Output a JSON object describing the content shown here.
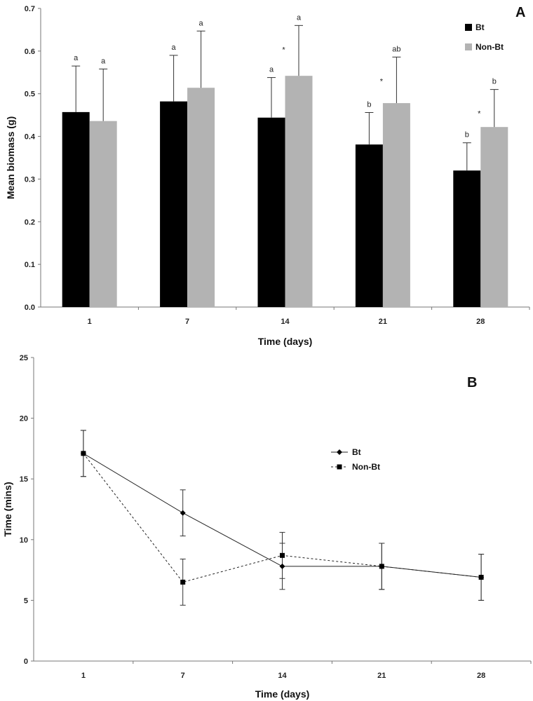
{
  "chart_data": [
    {
      "type": "bar",
      "panel_label": "A",
      "categories": [
        "1",
        "7",
        "14",
        "21",
        "28"
      ],
      "xlabel": "Time (days)",
      "ylabel": "Mean biomass (g)",
      "ylim": [
        0,
        0.7
      ],
      "yticks": [
        "0.0",
        "0.1",
        "0.2",
        "0.3",
        "0.4",
        "0.5",
        "0.6",
        "0.7"
      ],
      "grid": false,
      "legend_position": "top-right",
      "series": [
        {
          "name": "Bt",
          "color": "#000000",
          "values": [
            0.457,
            0.482,
            0.444,
            0.381,
            0.32
          ],
          "error": [
            0.108,
            0.108,
            0.094,
            0.075,
            0.065
          ],
          "letters": [
            "a",
            "a",
            "a",
            "b",
            "b"
          ]
        },
        {
          "name": "Non-Bt",
          "color": "#b3b3b3",
          "values": [
            0.436,
            0.514,
            0.542,
            0.478,
            0.422
          ],
          "error": [
            0.122,
            0.133,
            0.118,
            0.108,
            0.088
          ],
          "letters": [
            "a",
            "a",
            "a",
            "ab",
            "b"
          ]
        }
      ],
      "significance": [
        "",
        "",
        "*",
        "*",
        "*"
      ]
    },
    {
      "type": "line",
      "panel_label": "B",
      "categories": [
        "1",
        "7",
        "14",
        "21",
        "28"
      ],
      "xlabel": "Time (days)",
      "ylabel": "Time (mins)",
      "ylim": [
        0,
        25
      ],
      "yticks": [
        "0",
        "5",
        "10",
        "15",
        "20",
        "25"
      ],
      "grid": false,
      "legend_position": "center-right",
      "series": [
        {
          "name": "Bt",
          "marker": "diamond",
          "line_style": "solid",
          "values": [
            17.1,
            12.2,
            7.8,
            7.8,
            6.9
          ],
          "error": [
            1.9,
            1.9,
            1.9,
            1.9,
            1.9
          ]
        },
        {
          "name": "Non-Bt",
          "marker": "square",
          "line_style": "dashed",
          "values": [
            17.1,
            6.5,
            8.7,
            7.8,
            6.9
          ],
          "error": [
            1.9,
            1.9,
            1.9,
            1.9,
            1.9
          ]
        }
      ]
    }
  ]
}
